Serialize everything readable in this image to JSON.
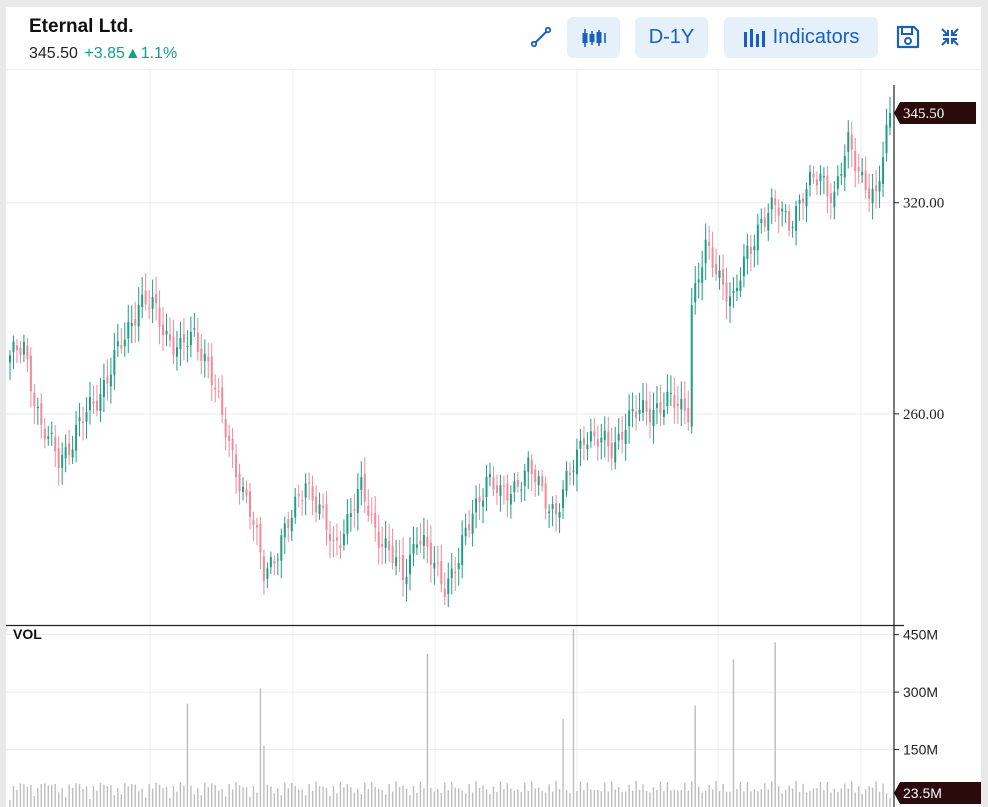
{
  "header": {
    "title": "Eternal Ltd.",
    "price": "345.50",
    "change": "+3.85▲1.1%"
  },
  "toolbar": {
    "draw_icon": "line-draw-icon",
    "candle_icon": "candlestick-icon",
    "range_label": "D-1Y",
    "indicators_icon": "bar-chart-icon",
    "indicators_label": "Indicators",
    "save_icon": "save-icon",
    "collapse_icon": "collapse-icon"
  },
  "colors": {
    "up": "#1f9e83",
    "down": "#f08a9a",
    "accent": "#1a5fbf",
    "button_bg": "#e6f0fb",
    "tag_bg": "#2a0a0a",
    "volume": "#bdbdbd",
    "grid": "#ececec"
  },
  "chart_data": {
    "type": "candlestick",
    "y_axis": {
      "ticks": [
        "320.00",
        "260.00"
      ],
      "range": [
        200,
        358
      ],
      "grid": true
    },
    "last_price_label": "345.50",
    "volume_label": "VOL",
    "volume_axis": {
      "ticks": [
        "450M",
        "300M",
        "150M"
      ],
      "range": [
        0,
        470
      ]
    },
    "last_volume_label": "23.5M",
    "keyframes_close": [
      [
        0,
        275
      ],
      [
        4,
        280
      ],
      [
        9,
        255
      ],
      [
        14,
        248
      ],
      [
        18,
        252
      ],
      [
        23,
        262
      ],
      [
        28,
        270
      ],
      [
        33,
        282
      ],
      [
        37,
        292
      ],
      [
        41,
        290
      ],
      [
        45,
        283
      ],
      [
        49,
        278
      ],
      [
        53,
        282
      ],
      [
        57,
        275
      ],
      [
        61,
        258
      ],
      [
        65,
        245
      ],
      [
        69,
        232
      ],
      [
        73,
        215
      ],
      [
        77,
        222
      ],
      [
        81,
        230
      ],
      [
        85,
        242
      ],
      [
        89,
        232
      ],
      [
        93,
        222
      ],
      [
        97,
        230
      ],
      [
        101,
        238
      ],
      [
        105,
        228
      ],
      [
        109,
        220
      ],
      [
        113,
        214
      ],
      [
        117,
        226
      ],
      [
        121,
        218
      ],
      [
        125,
        212
      ],
      [
        129,
        218
      ],
      [
        133,
        232
      ],
      [
        137,
        242
      ],
      [
        141,
        236
      ],
      [
        145,
        240
      ],
      [
        149,
        244
      ],
      [
        153,
        238
      ],
      [
        157,
        232
      ],
      [
        161,
        242
      ],
      [
        165,
        255
      ],
      [
        169,
        252
      ],
      [
        173,
        250
      ],
      [
        177,
        258
      ],
      [
        181,
        260
      ],
      [
        185,
        262
      ],
      [
        189,
        263
      ],
      [
        193,
        262
      ],
      [
        195,
        262
      ],
      [
        196,
        292
      ],
      [
        200,
        306
      ],
      [
        205,
        298
      ],
      [
        208,
        292
      ],
      [
        212,
        305
      ],
      [
        216,
        316
      ],
      [
        220,
        318
      ],
      [
        224,
        315
      ],
      [
        228,
        322
      ],
      [
        233,
        328
      ],
      [
        237,
        322
      ],
      [
        241,
        336
      ],
      [
        245,
        328
      ],
      [
        249,
        320
      ],
      [
        253,
        345.5
      ]
    ],
    "volume_spikes": [
      [
        9,
        60
      ],
      [
        51,
        270
      ],
      [
        72,
        310
      ],
      [
        73,
        160
      ],
      [
        120,
        400
      ],
      [
        159,
        230
      ],
      [
        162,
        465
      ],
      [
        197,
        265
      ],
      [
        208,
        385
      ],
      [
        220,
        430
      ]
    ]
  }
}
